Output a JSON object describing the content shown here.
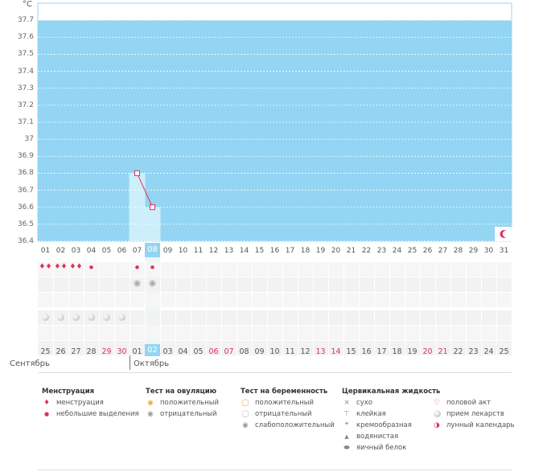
{
  "chart": {
    "unit": "°C",
    "y_ticks": [
      "37.7",
      "37.6",
      "37.5",
      "37.4",
      "37.3",
      "37.2",
      "37.1",
      "37",
      "36.9",
      "36.8",
      "36.7",
      "36.6",
      "36.5",
      "36.4"
    ],
    "colors": {
      "fill": "#93d5f3",
      "bar": "#cdeefb",
      "line": "#e0325a",
      "grid": "#ffffff",
      "highlight": "#93d5f3"
    }
  },
  "chart_data": {
    "type": "line",
    "y_unit": "°C",
    "ylim": [
      36.4,
      37.8
    ],
    "x": [
      "01",
      "02",
      "03",
      "04",
      "05",
      "06",
      "07",
      "08",
      "09",
      "10",
      "11",
      "12",
      "13",
      "14",
      "15",
      "16",
      "17",
      "18",
      "19",
      "20",
      "21",
      "22",
      "23",
      "24",
      "25",
      "26",
      "27",
      "28",
      "29",
      "30",
      "31"
    ],
    "series": [
      {
        "points": [
          [
            7,
            36.8
          ],
          [
            8,
            36.6
          ]
        ]
      }
    ]
  },
  "top_days": [
    "01",
    "02",
    "03",
    "04",
    "05",
    "06",
    "07",
    "08",
    "09",
    "10",
    "11",
    "12",
    "13",
    "14",
    "15",
    "16",
    "17",
    "18",
    "19",
    "20",
    "21",
    "22",
    "23",
    "24",
    "25",
    "26",
    "27",
    "28",
    "29",
    "30",
    "31"
  ],
  "highlight_top_index": 7,
  "bottom_days": [
    {
      "d": "25",
      "red": false
    },
    {
      "d": "26",
      "red": false
    },
    {
      "d": "27",
      "red": false
    },
    {
      "d": "28",
      "red": false
    },
    {
      "d": "29",
      "red": true
    },
    {
      "d": "30",
      "red": true
    },
    {
      "d": "01",
      "red": false
    },
    {
      "d": "02",
      "red": false
    },
    {
      "d": "03",
      "red": false
    },
    {
      "d": "04",
      "red": false
    },
    {
      "d": "05",
      "red": false
    },
    {
      "d": "06",
      "red": true
    },
    {
      "d": "07",
      "red": true
    },
    {
      "d": "08",
      "red": false
    },
    {
      "d": "09",
      "red": false
    },
    {
      "d": "10",
      "red": false
    },
    {
      "d": "11",
      "red": false
    },
    {
      "d": "12",
      "red": false
    },
    {
      "d": "13",
      "red": true
    },
    {
      "d": "14",
      "red": true
    },
    {
      "d": "15",
      "red": false
    },
    {
      "d": "16",
      "red": false
    },
    {
      "d": "17",
      "red": false
    },
    {
      "d": "18",
      "red": false
    },
    {
      "d": "19",
      "red": false
    },
    {
      "d": "20",
      "red": true
    },
    {
      "d": "21",
      "red": true
    },
    {
      "d": "22",
      "red": false
    },
    {
      "d": "23",
      "red": false
    },
    {
      "d": "24",
      "red": false
    },
    {
      "d": "25",
      "red": false
    }
  ],
  "highlight_bottom_index": 7,
  "months": {
    "left": "Сентябрь",
    "right": "Октябрь"
  },
  "marks": {
    "menstruation_heavy": [
      0,
      1,
      2
    ],
    "menstruation_light": [
      3,
      6,
      7
    ],
    "ovulation_negative": [
      6,
      7
    ],
    "medication": [
      0,
      1,
      2,
      3,
      4,
      5
    ]
  },
  "legend": {
    "menstruation": {
      "title": "Менструация",
      "items": [
        "менструация",
        "небольшие выделения"
      ]
    },
    "ovulation": {
      "title": "Тест на овуляцию",
      "items": [
        "положительный",
        "отрицательный"
      ]
    },
    "pregnancy": {
      "title": "Тест на беременность",
      "items": [
        "положительный",
        "отрицательный",
        "слабоположительный"
      ]
    },
    "cervical": {
      "title": "Цервикальная жидкость",
      "items": [
        "сухо",
        "клейкая",
        "кремообразная",
        "водянистая",
        "яичный белок"
      ]
    },
    "other": {
      "items": [
        "половой акт",
        "прием лекарств",
        "лунный календарь"
      ]
    }
  }
}
